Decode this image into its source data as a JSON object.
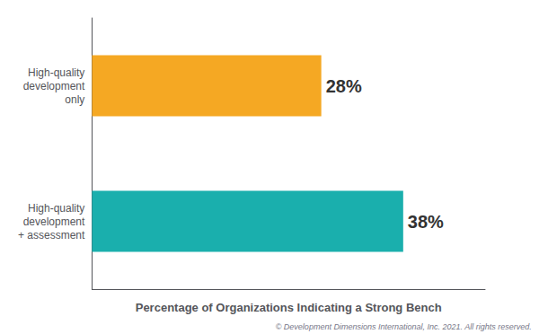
{
  "chart_data": {
    "type": "bar",
    "orientation": "horizontal",
    "categories": [
      "High-quality\ndevelopment\nonly",
      "High-quality\ndevelopment\n+ assessment"
    ],
    "values": [
      28,
      38
    ],
    "value_labels": [
      "28%",
      "38%"
    ],
    "data_labels": true,
    "colors": [
      "#F5A823",
      "#1AAFAD"
    ],
    "xlabel": "Percentage of Organizations Indicating a Strong Bench",
    "xlim": [
      0,
      48
    ],
    "tick_labels": "y",
    "grid": false,
    "annotations": [
      "© Development Dimensions International, Inc. 2021. All rights reserved."
    ]
  }
}
